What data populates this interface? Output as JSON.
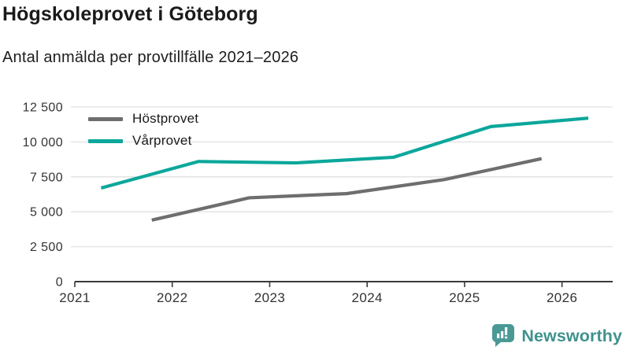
{
  "header": {
    "title": "Högskoleprovet i Göteborg",
    "subtitle": "Antal anmälda per provtillfälle 2021–2026"
  },
  "chart_data": {
    "type": "line",
    "title": "Högskoleprovet i Göteborg",
    "subtitle": "Antal anmälda per provtillfälle 2021–2026",
    "xlabel": "",
    "ylabel": "",
    "grid": true,
    "legend_position": "top-left",
    "xlim": [
      2021,
      2026.52
    ],
    "ylim": [
      0,
      12500
    ],
    "x_ticks": [
      2021,
      2022,
      2023,
      2024,
      2025,
      2026
    ],
    "y_ticks": [
      0,
      2500,
      5000,
      7500,
      10000,
      12500
    ],
    "y_tick_labels": [
      "0",
      "2 500",
      "5 000",
      "7 500",
      "10 000",
      "12 500"
    ],
    "series": [
      {
        "name": "Höstprovet",
        "color": "#6e6e6e",
        "x": [
          2021.79,
          2022.79,
          2023.79,
          2024.79,
          2025.79
        ],
        "values": [
          4400,
          6000,
          6300,
          7300,
          8800
        ]
      },
      {
        "name": "Vårprovet",
        "color": "#0ba79b",
        "x": [
          2021.27,
          2022.27,
          2023.27,
          2024.27,
          2025.27,
          2026.27
        ],
        "values": [
          6700,
          8600,
          8500,
          8900,
          11100,
          11700
        ]
      }
    ],
    "axis_color": "#3a3a3a",
    "grid_color": "#e1e1e1"
  },
  "footer": {
    "brand": "Newsworthy",
    "brand_color": "#3f928e",
    "icon_color": "#4a9995",
    "icon": "bar-chart-speech-bubble"
  }
}
